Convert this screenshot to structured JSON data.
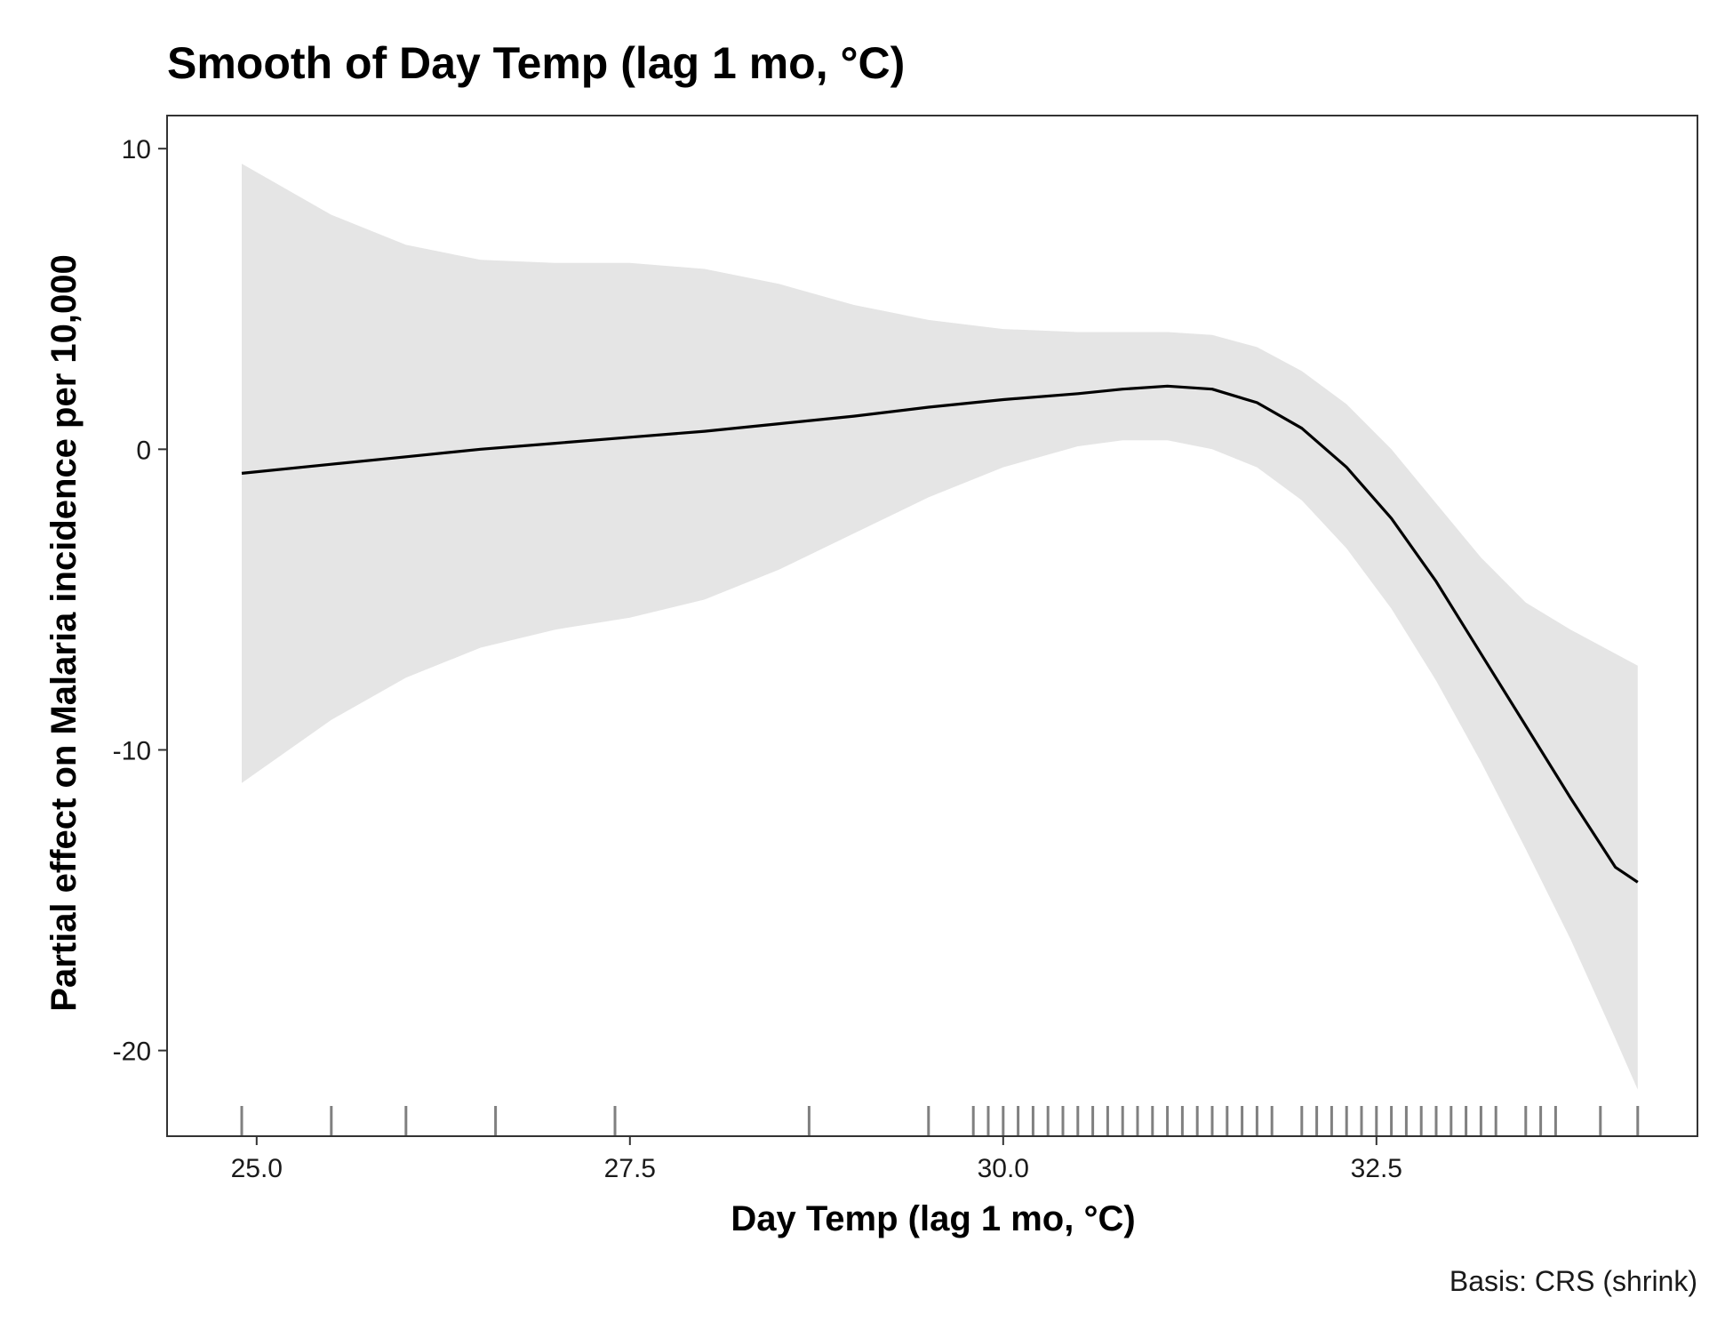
{
  "chart_data": {
    "type": "line",
    "title": "Smooth of Day Temp (lag 1 mo, °C)",
    "xlabel": "Day Temp (lag 1 mo, °C)",
    "ylabel": "Partial effect on Malaria incidence per 10,000",
    "caption": "Basis: CRS (shrink)",
    "xlim": [
      24.4,
      34.65
    ],
    "ylim": [
      -22.85,
      11.1
    ],
    "xticks": [
      25.0,
      27.5,
      30.0,
      32.5
    ],
    "xtick_labels": [
      "25.0",
      "27.5",
      "30.0",
      "32.5"
    ],
    "yticks": [
      10,
      0,
      -10,
      -20
    ],
    "ytick_labels": [
      "10",
      "0",
      "-10",
      "-20"
    ],
    "grid": false,
    "legend": "none",
    "colors": {
      "line": "#000000",
      "ribbon": "#e5e5e5",
      "rug": "#808080",
      "frame": "#333333"
    },
    "series": [
      {
        "x": [
          24.9,
          25.5,
          26.0,
          26.5,
          27.0,
          27.5,
          28.0,
          28.5,
          29.0,
          29.5,
          30.0,
          30.5,
          30.8,
          31.1,
          31.4,
          31.7,
          32.0,
          32.3,
          32.6,
          32.9,
          33.2,
          33.5,
          33.8,
          34.1,
          34.25
        ],
        "y": [
          -0.8,
          -0.5,
          -0.25,
          0.0,
          0.2,
          0.4,
          0.6,
          0.85,
          1.1,
          1.4,
          1.65,
          1.85,
          2.0,
          2.1,
          2.0,
          1.55,
          0.7,
          -0.6,
          -2.3,
          -4.4,
          -6.8,
          -9.2,
          -11.6,
          -13.9,
          -14.4
        ]
      }
    ],
    "ribbon": {
      "x": [
        24.9,
        25.5,
        26.0,
        26.5,
        27.0,
        27.5,
        28.0,
        28.5,
        29.0,
        29.5,
        30.0,
        30.5,
        30.8,
        31.1,
        31.4,
        31.7,
        32.0,
        32.3,
        32.6,
        32.9,
        33.2,
        33.5,
        33.8,
        34.1,
        34.25
      ],
      "upper": [
        9.5,
        7.8,
        6.8,
        6.3,
        6.2,
        6.2,
        6.0,
        5.5,
        4.8,
        4.3,
        4.0,
        3.9,
        3.9,
        3.9,
        3.8,
        3.4,
        2.6,
        1.5,
        0.0,
        -1.8,
        -3.6,
        -5.1,
        -6.0,
        -6.8,
        -7.2
      ],
      "lower": [
        -11.1,
        -9.0,
        -7.6,
        -6.6,
        -6.0,
        -5.6,
        -5.0,
        -4.0,
        -2.8,
        -1.6,
        -0.6,
        0.1,
        0.3,
        0.3,
        0.0,
        -0.6,
        -1.7,
        -3.3,
        -5.3,
        -7.7,
        -10.4,
        -13.3,
        -16.3,
        -19.6,
        -21.3
      ]
    },
    "rug_x": [
      24.9,
      25.5,
      26.0,
      26.6,
      27.4,
      28.7,
      29.5,
      29.8,
      29.9,
      30.0,
      30.1,
      30.2,
      30.3,
      30.4,
      30.5,
      30.6,
      30.7,
      30.8,
      30.9,
      31.0,
      31.1,
      31.2,
      31.3,
      31.4,
      31.5,
      31.6,
      31.7,
      31.8,
      32.0,
      32.1,
      32.2,
      32.3,
      32.4,
      32.5,
      32.6,
      32.7,
      32.8,
      32.9,
      33.0,
      33.1,
      33.2,
      33.3,
      33.5,
      33.6,
      33.7,
      34.0,
      34.25
    ]
  }
}
